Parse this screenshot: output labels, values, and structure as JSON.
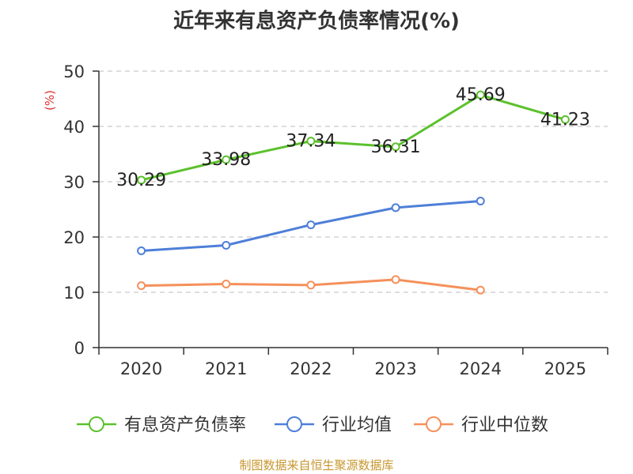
{
  "chart_data": {
    "type": "line",
    "title": "近年来有息资产负债率情况(%)",
    "ylabel": "(%)",
    "xlabel": "",
    "categories": [
      "2020",
      "2021",
      "2022",
      "2023",
      "2024",
      "2025"
    ],
    "ylim": [
      0,
      50
    ],
    "yticks": [
      0,
      10,
      20,
      30,
      40,
      50
    ],
    "grid": true,
    "legend_position": "bottom",
    "series": [
      {
        "name": "有息资产负债率",
        "color": "#5cc12d",
        "values": [
          30.29,
          33.98,
          37.34,
          36.31,
          45.69,
          41.23
        ],
        "labels": [
          "30.29",
          "33.98",
          "37.34",
          "36.31",
          "45.69",
          "41.23"
        ],
        "show_labels": true
      },
      {
        "name": "行业均值",
        "color": "#4e7fd8",
        "values": [
          17.5,
          18.5,
          22.2,
          25.3,
          26.5,
          null
        ],
        "show_labels": false
      },
      {
        "name": "行业中位数",
        "color": "#f5905a",
        "values": [
          11.2,
          11.5,
          11.3,
          12.3,
          10.4,
          null
        ],
        "show_labels": false
      }
    ],
    "source": "制图数据来自恒生聚源数据库",
    "source_color": "#c8962e",
    "title_color": "#333333",
    "ylabel_color": "#e03030",
    "grid_color": "#bbbbbb"
  }
}
